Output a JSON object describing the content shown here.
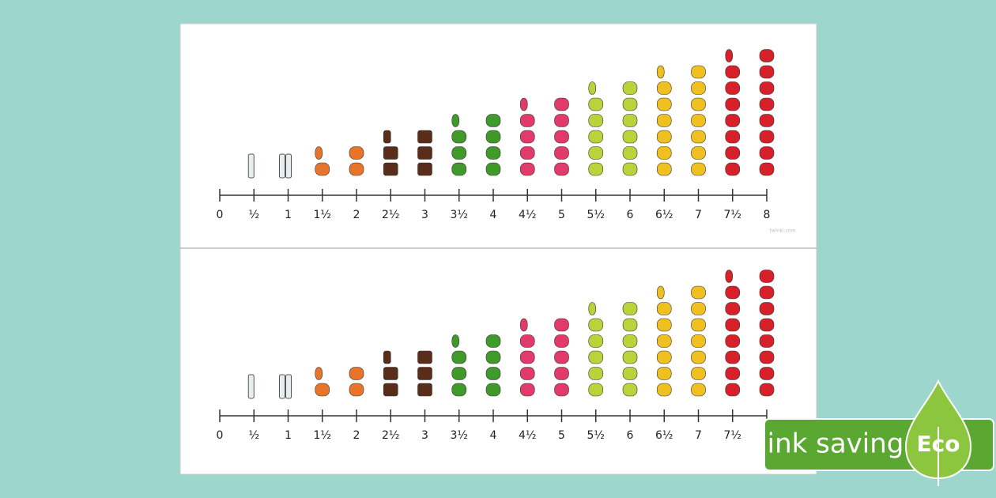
{
  "number_line": {
    "ticks": [
      {
        "label": "0",
        "icon": "none",
        "rows": 0
      },
      {
        "label": "½",
        "icon": "bottle",
        "rows": 1
      },
      {
        "label": "1",
        "icon": "bottle",
        "rows": 1
      },
      {
        "label": "1½",
        "icon": "orange",
        "rows": 2
      },
      {
        "label": "2",
        "icon": "orange",
        "rows": 2
      },
      {
        "label": "2½",
        "icon": "cake",
        "rows": 3
      },
      {
        "label": "3",
        "icon": "cake",
        "rows": 3
      },
      {
        "label": "3½",
        "icon": "melon",
        "rows": 4
      },
      {
        "label": "4",
        "icon": "melon",
        "rows": 4
      },
      {
        "label": "4½",
        "icon": "sweet",
        "rows": 5
      },
      {
        "label": "5",
        "icon": "sweet",
        "rows": 5
      },
      {
        "label": "5½",
        "icon": "pear",
        "rows": 6
      },
      {
        "label": "6",
        "icon": "pear",
        "rows": 6
      },
      {
        "label": "6½",
        "icon": "flower",
        "rows": 7
      },
      {
        "label": "7",
        "icon": "flower",
        "rows": 7
      },
      {
        "label": "7½",
        "icon": "strawberry",
        "rows": 8
      },
      {
        "label": "8",
        "icon": "strawberry",
        "rows": 8
      }
    ],
    "watermark": "twinkl.com"
  },
  "badge": {
    "text": "ink saving",
    "leaf": "Eco"
  }
}
